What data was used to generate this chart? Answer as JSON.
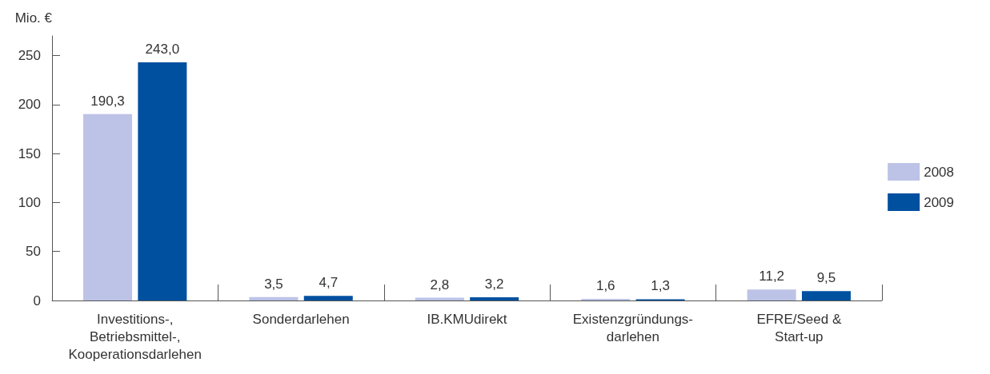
{
  "chart_data": {
    "type": "bar",
    "ylabel": "Mio. €",
    "categories": [
      "Investitions-,\nBetriebsmittel-,\nKooperationsdarlehen",
      "Sonderdarlehen",
      "IB.KMUdirekt",
      "Existenzgründungs-\ndarlehen",
      "EFRE/Seed &\nStart-up"
    ],
    "series": [
      {
        "name": "2008",
        "color": "#bcc3e6",
        "values": [
          190.3,
          3.5,
          2.8,
          1.6,
          11.2
        ],
        "value_labels": [
          "190,3",
          "3,5",
          "2,8",
          "1,6",
          "11,2"
        ]
      },
      {
        "name": "2009",
        "color": "#0050a0",
        "values": [
          243.0,
          4.7,
          3.2,
          1.3,
          9.5
        ],
        "value_labels": [
          "243,0",
          "4,7",
          "3,2",
          "1,3",
          "9,5"
        ]
      }
    ],
    "ylim": [
      0,
      270
    ],
    "yticks": [
      0,
      50,
      100,
      150,
      200,
      250
    ],
    "grid": false,
    "legend": "right"
  }
}
